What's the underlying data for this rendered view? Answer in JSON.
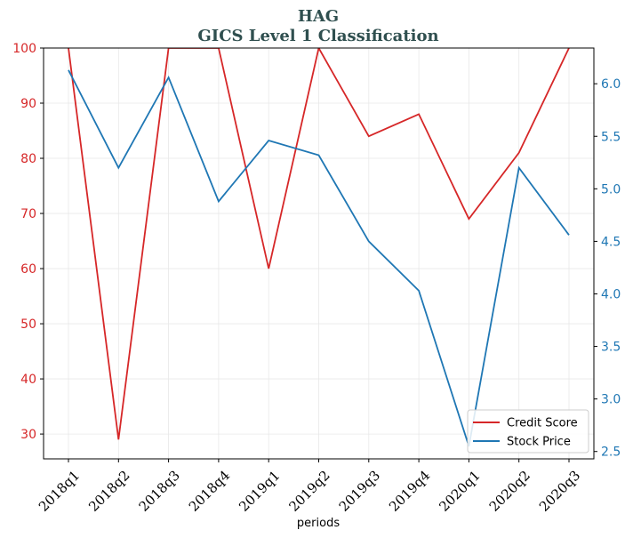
{
  "chart_data": {
    "type": "line",
    "title": "HAG",
    "subtitle": "GICS Level 1 Classification",
    "xlabel": "periods",
    "categories": [
      "2018q1",
      "2018q2",
      "2018q3",
      "2018q4",
      "2019q1",
      "2019q2",
      "2019q3",
      "2019q4",
      "2020q1",
      "2020q2",
      "2020q3"
    ],
    "left_axis": {
      "ylim": [
        25.5,
        100
      ],
      "ticks": [
        30,
        40,
        50,
        60,
        70,
        80,
        90,
        100
      ],
      "color": "#d62728"
    },
    "right_axis": {
      "ylim": [
        2.43,
        6.34
      ],
      "ticks": [
        "2.5",
        "3.0",
        "3.5",
        "4.0",
        "4.5",
        "5.0",
        "5.5",
        "6.0"
      ],
      "color": "#1f77b4"
    },
    "series": [
      {
        "name": "Credit Score",
        "axis": "left",
        "color": "#d62728",
        "values": [
          100,
          29,
          100,
          100,
          60,
          100,
          84,
          88,
          69,
          81,
          100
        ]
      },
      {
        "name": "Stock Price",
        "axis": "right",
        "color": "#1f77b4",
        "values": [
          6.13,
          5.2,
          6.06,
          4.88,
          5.46,
          5.32,
          4.5,
          4.03,
          2.55,
          5.2,
          4.56
        ]
      }
    ],
    "grid": true,
    "legend": "bottom-right"
  }
}
